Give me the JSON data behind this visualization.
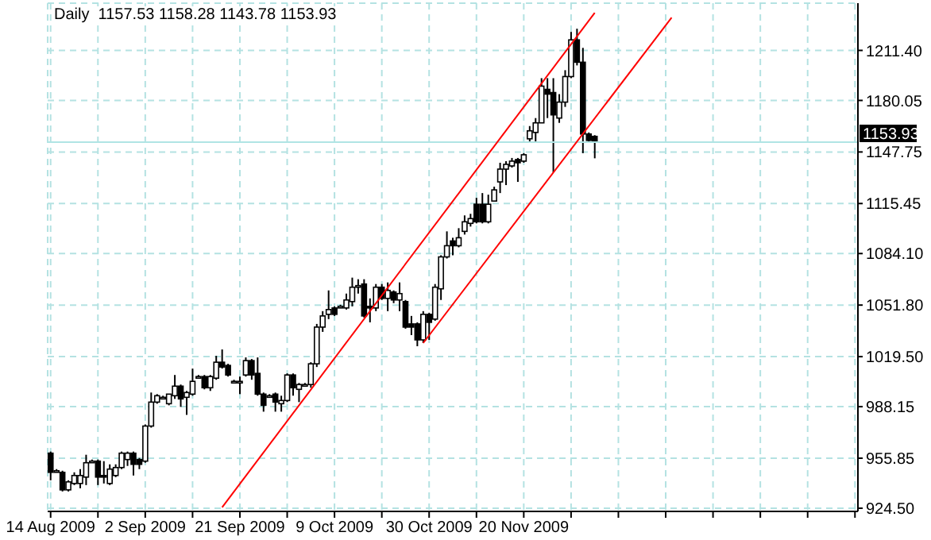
{
  "chart_data": {
    "type": "candlestick",
    "title": "Daily  1157.53 1158.28 1143.78 1153.93",
    "categories": [
      "14 Aug 2009",
      null,
      null,
      null,
      null,
      null,
      null,
      null,
      null,
      null,
      null,
      null,
      null,
      null,
      null,
      null,
      "2 Sep 2009",
      null,
      null,
      null,
      null,
      null,
      null,
      null,
      null,
      null,
      null,
      null,
      null,
      null,
      null,
      null,
      "21 Sep 2009",
      null,
      null,
      null,
      null,
      null,
      null,
      null,
      null,
      null,
      null,
      null,
      null,
      null,
      null,
      null,
      "9 Oct 2009",
      null,
      null,
      null,
      null,
      null,
      null,
      null,
      null,
      null,
      null,
      null,
      null,
      null,
      null,
      null,
      "30 Oct 2009",
      null,
      null,
      null,
      null,
      null,
      null,
      null,
      null,
      null,
      null,
      null,
      null,
      null,
      null,
      null,
      "20 Nov 2009",
      null,
      null,
      null,
      null,
      null,
      null,
      null,
      null,
      null,
      null,
      null,
      null,
      null,
      null,
      null,
      null,
      null,
      null,
      null,
      null,
      null,
      null,
      null,
      null,
      null,
      null,
      null,
      null,
      null,
      null,
      null,
      null,
      null,
      null,
      null,
      null,
      null,
      null,
      null,
      null,
      null,
      null,
      null,
      null,
      null,
      null,
      null,
      null,
      null,
      null,
      null,
      null,
      null,
      null,
      null,
      null
    ],
    "ohlc": [
      [
        959,
        960,
        942,
        947
      ],
      [
        948,
        949,
        947,
        948
      ],
      [
        947,
        948,
        935,
        936
      ],
      [
        936,
        942,
        935,
        941
      ],
      [
        940,
        947,
        939,
        945
      ],
      [
        940,
        949,
        937,
        945
      ],
      [
        944,
        958,
        939,
        953
      ],
      [
        954,
        955,
        953,
        954
      ],
      [
        954,
        955,
        939,
        944
      ],
      [
        945,
        954,
        940,
        944
      ],
      [
        940,
        952,
        939,
        949
      ],
      [
        945,
        952,
        944,
        950
      ],
      [
        950,
        960,
        949,
        959
      ],
      [
        955,
        960,
        951,
        959
      ],
      [
        959,
        960,
        945,
        952
      ],
      [
        955,
        956,
        949,
        952
      ],
      [
        954,
        977,
        953,
        976
      ],
      [
        976,
        997,
        975,
        991
      ],
      [
        991,
        996,
        990,
        995
      ],
      [
        994,
        995,
        993,
        994
      ],
      [
        990,
        996,
        989,
        996
      ],
      [
        995,
        1008,
        993,
        1001
      ],
      [
        1001,
        1002,
        988,
        993
      ],
      [
        994,
        998,
        983,
        997
      ],
      [
        996,
        1012,
        995,
        1004
      ],
      [
        1007,
        1008,
        1006,
        1007
      ],
      [
        1007,
        1008,
        999,
        1000
      ],
      [
        1000,
        1008,
        998,
        1007
      ],
      [
        1006,
        1020,
        1005,
        1016
      ],
      [
        1016,
        1024,
        1012,
        1013
      ],
      [
        1014,
        1015,
        1007,
        1008
      ],
      [
        1004,
        1005,
        1003,
        1004
      ],
      [
        1004,
        1007,
        996,
        1004
      ],
      [
        1008,
        1019,
        1007,
        1017
      ],
      [
        1017,
        1018,
        1005,
        1008
      ],
      [
        1009,
        1019,
        995,
        996
      ],
      [
        996,
        997,
        985,
        989
      ],
      [
        995,
        996,
        994,
        995
      ],
      [
        996,
        997,
        985,
        991
      ],
      [
        990,
        995,
        985,
        992
      ],
      [
        992,
        1009,
        991,
        1008
      ],
      [
        1008,
        1009,
        995,
        1000
      ],
      [
        999,
        1003,
        991,
        1002
      ],
      [
        1002,
        1003,
        1001,
        1002
      ],
      [
        1002,
        1016,
        1000,
        1015
      ],
      [
        1015,
        1040,
        1013,
        1038
      ],
      [
        1038,
        1048,
        1035,
        1045
      ],
      [
        1046,
        1061,
        1043,
        1049
      ],
      [
        1050,
        1051,
        1045,
        1046
      ],
      [
        1051,
        1052,
        1050,
        1051
      ],
      [
        1050,
        1059,
        1049,
        1055
      ],
      [
        1054,
        1069,
        1051,
        1063
      ],
      [
        1063,
        1068,
        1059,
        1064
      ],
      [
        1065,
        1068,
        1044,
        1045
      ],
      [
        1051,
        1056,
        1041,
        1050
      ],
      [
        1050,
        1065,
        1048,
        1063
      ],
      [
        1063,
        1065,
        1055,
        1056
      ],
      [
        1056,
        1066,
        1048,
        1061
      ],
      [
        1060,
        1061,
        1053,
        1055
      ],
      [
        1055,
        1066,
        1048,
        1059
      ],
      [
        1054,
        1055,
        1037,
        1038
      ],
      [
        1040,
        1045,
        1033,
        1038
      ],
      [
        1040,
        1041,
        1026,
        1030
      ],
      [
        1030,
        1048,
        1028,
        1046
      ],
      [
        1046,
        1047,
        1030,
        1041
      ],
      [
        1043,
        1065,
        1042,
        1063
      ],
      [
        1062,
        1083,
        1055,
        1082
      ],
      [
        1082,
        1098,
        1081,
        1089
      ],
      [
        1092,
        1094,
        1083,
        1089
      ],
      [
        1089,
        1100,
        1088,
        1094
      ],
      [
        1098,
        1108,
        1096,
        1104
      ],
      [
        1103,
        1109,
        1101,
        1106
      ],
      [
        1115,
        1119,
        1103,
        1104
      ],
      [
        1115,
        1122,
        1103,
        1104
      ],
      [
        1104,
        1121,
        1103,
        1115
      ],
      [
        1117,
        1126,
        1117,
        1124
      ],
      [
        1129,
        1141,
        1122,
        1137
      ],
      [
        1137,
        1142,
        1127,
        1140
      ],
      [
        1139,
        1144,
        1138,
        1142
      ],
      [
        1143,
        1144,
        1129,
        1141
      ],
      [
        1142,
        1147,
        1141,
        1146
      ],
      [
        1156,
        1164,
        1154,
        1161
      ],
      [
        1160,
        1169,
        1154,
        1166
      ],
      [
        1166,
        1194,
        1166,
        1189
      ],
      [
        1187,
        1194,
        1169,
        1184
      ],
      [
        1185,
        1194,
        1135,
        1171
      ],
      [
        1169,
        1184,
        1166,
        1179
      ],
      [
        1179,
        1199,
        1176,
        1195
      ],
      [
        1195,
        1223,
        1194,
        1218
      ],
      [
        1218,
        1225,
        1202,
        1204
      ],
      [
        1204,
        1213,
        1147,
        1159
      ],
      [
        1159,
        1160,
        1154,
        1155
      ],
      [
        1157.53,
        1158.28,
        1143.78,
        1153.93
      ],
      null,
      null,
      null,
      null,
      null,
      null,
      null,
      null,
      null,
      null,
      null,
      null,
      null,
      null,
      null,
      null,
      null,
      null,
      null,
      null,
      null,
      null,
      null,
      null,
      null,
      null,
      null,
      null,
      null,
      null,
      null,
      null,
      null,
      null,
      null,
      null,
      null,
      null,
      null,
      null,
      null,
      null,
      null,
      null
    ],
    "series": [
      {
        "type": "line",
        "color": "#ff0000",
        "values": [
          null,
          null,
          null,
          null,
          null,
          null,
          null,
          null,
          null,
          null,
          null,
          null,
          null,
          null,
          null,
          null,
          null,
          null,
          null,
          null,
          null,
          null,
          null,
          null,
          null,
          null,
          null,
          null,
          null,
          925,
          null,
          null,
          null,
          null,
          null,
          null,
          null,
          null,
          null,
          null,
          null,
          null,
          null,
          null,
          null,
          null,
          null,
          null,
          null,
          null,
          null,
          null,
          null,
          null,
          null,
          null,
          null,
          null,
          null,
          null,
          null,
          null,
          null,
          null,
          null,
          null,
          null,
          null,
          null,
          null,
          null,
          null,
          null,
          null,
          null,
          null,
          null,
          null,
          null,
          null,
          null,
          null,
          null,
          null,
          null,
          null,
          null,
          null,
          null,
          null,
          null,
          null,
          1235,
          null,
          null,
          null,
          null,
          null,
          null,
          null,
          null,
          null,
          null,
          null,
          null,
          null,
          null,
          null,
          null,
          null,
          null,
          null,
          null,
          null,
          null,
          null,
          null,
          null,
          null,
          null,
          null,
          null,
          null,
          null,
          null,
          null,
          null,
          null,
          null,
          null,
          null,
          null,
          null,
          null,
          null,
          null,
          null
        ]
      },
      {
        "type": "line",
        "color": "#ff0000",
        "values": [
          null,
          null,
          null,
          null,
          null,
          null,
          null,
          null,
          null,
          null,
          null,
          null,
          null,
          null,
          null,
          null,
          null,
          null,
          null,
          null,
          null,
          null,
          null,
          null,
          null,
          null,
          null,
          null,
          null,
          null,
          null,
          null,
          null,
          null,
          null,
          null,
          null,
          null,
          null,
          null,
          null,
          null,
          null,
          null,
          null,
          null,
          null,
          null,
          null,
          null,
          null,
          null,
          null,
          null,
          null,
          null,
          null,
          null,
          null,
          null,
          null,
          null,
          null,
          1028,
          null,
          null,
          null,
          null,
          null,
          null,
          null,
          null,
          null,
          null,
          null,
          null,
          null,
          null,
          null,
          null,
          null,
          null,
          null,
          null,
          null,
          null,
          null,
          null,
          null,
          null,
          null,
          null,
          null,
          null,
          null,
          null,
          null,
          null,
          null,
          null,
          null,
          null,
          null,
          null,
          null,
          1232,
          null,
          null,
          null,
          null,
          null,
          null,
          null,
          null,
          null,
          null,
          null,
          null,
          null,
          null,
          null,
          null,
          null,
          null,
          null,
          null,
          null,
          null,
          null,
          null,
          null,
          null,
          null,
          null,
          null,
          null,
          null
        ]
      }
    ],
    "ylim": [
      922.5,
      1241
    ],
    "yticks": [
      {
        "value": 924.5,
        "label": "924.50"
      },
      {
        "value": 955.85,
        "label": "955.85"
      },
      {
        "value": 988.15,
        "label": "988.15"
      },
      {
        "value": 1019.5,
        "label": "1019.50"
      },
      {
        "value": 1051.8,
        "label": "1051.80"
      },
      {
        "value": 1084.1,
        "label": "1084.10"
      },
      {
        "value": 1115.45,
        "label": "1115.45"
      },
      {
        "value": 1147.75,
        "label": "1147.75"
      },
      {
        "value": 1180.05,
        "label": "1180.05"
      },
      {
        "value": 1211.4,
        "label": "1211.40"
      }
    ],
    "ref_lines": [
      {
        "axis": "y",
        "value": 1153.93,
        "label": "1153.93",
        "color": "#b0e4e4"
      }
    ],
    "grid": true
  }
}
